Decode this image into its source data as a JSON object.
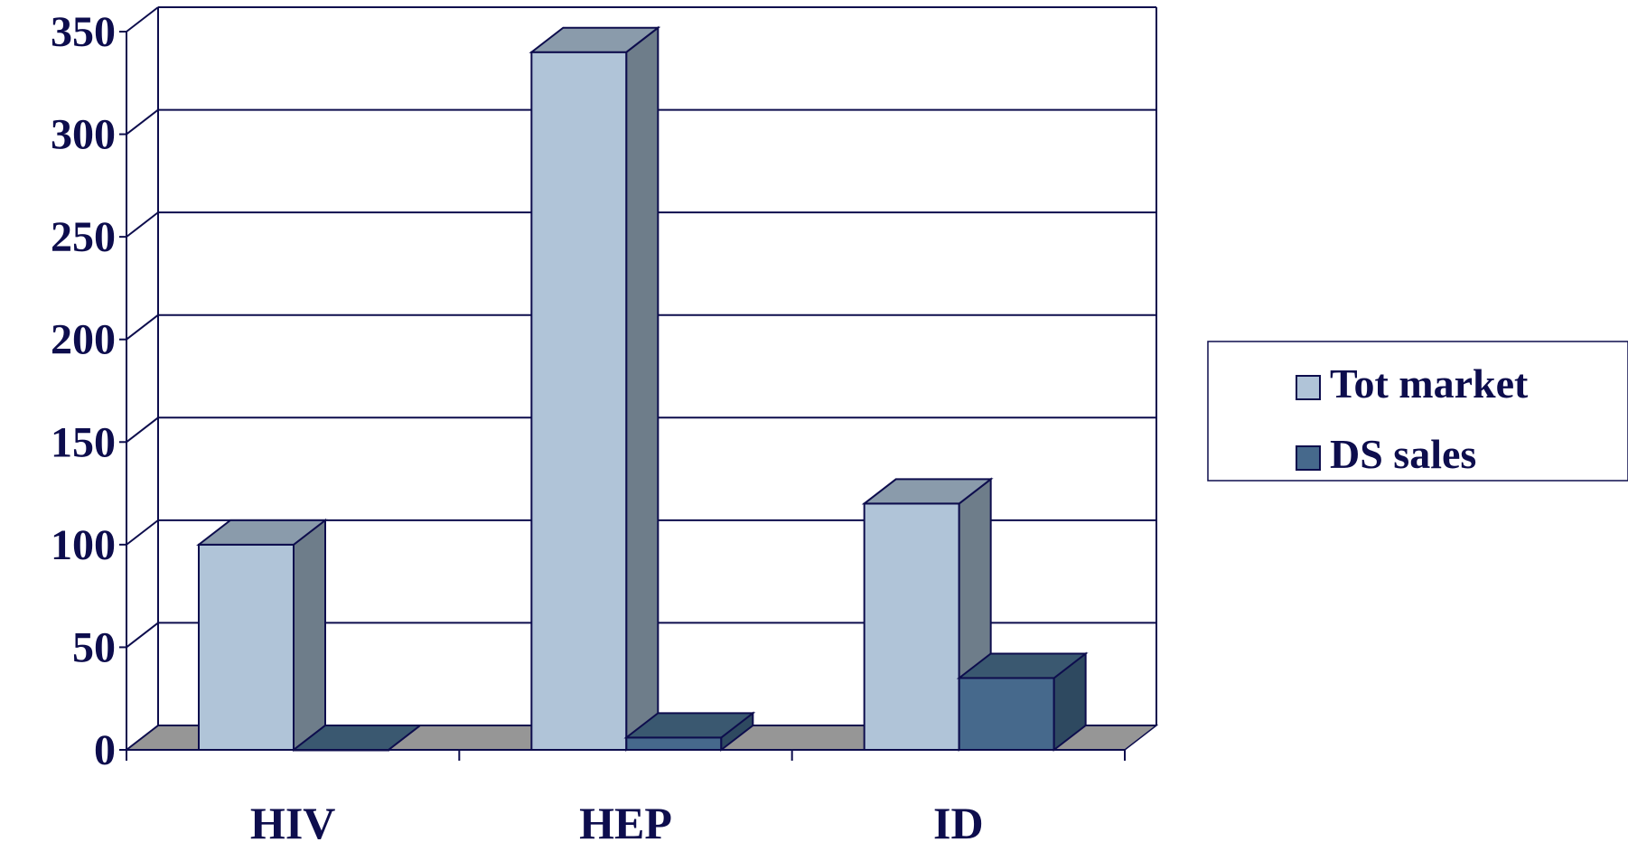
{
  "chart_data": {
    "type": "bar",
    "categories": [
      "HIV",
      "HEP",
      "ID"
    ],
    "series": [
      {
        "name": "Tot market",
        "values": [
          100,
          340,
          120
        ],
        "color": "#b0c4d8"
      },
      {
        "name": "DS sales",
        "values": [
          0,
          6,
          35
        ],
        "color": "#46698c"
      }
    ],
    "ylim": [
      0,
      350
    ],
    "yticks": [
      "0",
      "50",
      "100",
      "150",
      "200",
      "250",
      "300",
      "350"
    ],
    "grid": true,
    "legend_position": "right",
    "colors": {
      "axis": "#0d0d4d",
      "floor": "#969696",
      "tot_side": "#6e7d8a",
      "tot_top": "#8a9bab",
      "ds_side": "#2e4960",
      "ds_top": "#3a5870"
    }
  }
}
